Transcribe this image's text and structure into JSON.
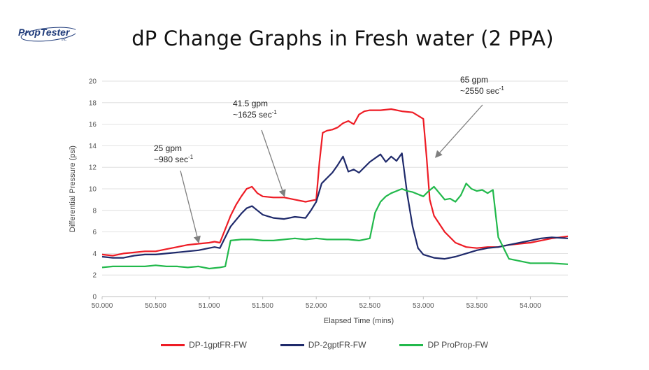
{
  "logo": {
    "name": "PropTester",
    "suffix": "Inc."
  },
  "slide_title": "dP Change Graphs in Fresh water (2 PPA)",
  "colors": {
    "red": "#ee1c25",
    "navy": "#1f2a6b",
    "green": "#22b94c",
    "grid": "#d9d9d9"
  },
  "chart_data": {
    "type": "line",
    "xlabel": "Elapsed Time (mins)",
    "ylabel": "Differential Pressure (psi)",
    "xlim": [
      50.0,
      54.35
    ],
    "ylim": [
      0,
      20
    ],
    "xticks": [
      "50.000",
      "50.500",
      "51.000",
      "51.500",
      "52.000",
      "52.500",
      "53.000",
      "53.500",
      "54.000"
    ],
    "yticks": [
      "0",
      "2",
      "4",
      "6",
      "8",
      "10",
      "12",
      "14",
      "16",
      "18",
      "20"
    ],
    "grid": "horizontal",
    "legend_position": "bottom",
    "series": [
      {
        "name": "DP-1gptFR-FW",
        "color": "#ee1c25",
        "x": [
          50.0,
          50.1,
          50.2,
          50.3,
          50.4,
          50.5,
          50.6,
          50.7,
          50.8,
          50.9,
          51.0,
          51.05,
          51.1,
          51.2,
          51.25,
          51.3,
          51.35,
          51.4,
          51.45,
          51.5,
          51.6,
          51.7,
          51.8,
          51.9,
          51.95,
          52.0,
          52.03,
          52.06,
          52.1,
          52.15,
          52.2,
          52.25,
          52.3,
          52.35,
          52.4,
          52.45,
          52.5,
          52.6,
          52.7,
          52.8,
          52.9,
          53.0,
          53.03,
          53.06,
          53.1,
          53.2,
          53.3,
          53.4,
          53.5,
          53.6,
          53.7,
          53.8,
          53.9,
          54.0,
          54.1,
          54.2,
          54.35
        ],
        "y": [
          3.9,
          3.8,
          4.0,
          4.1,
          4.2,
          4.2,
          4.4,
          4.6,
          4.8,
          4.9,
          5.0,
          5.1,
          5.0,
          7.5,
          8.5,
          9.3,
          10.0,
          10.2,
          9.6,
          9.3,
          9.2,
          9.2,
          9.0,
          8.8,
          8.9,
          9.0,
          12.5,
          15.2,
          15.4,
          15.5,
          15.7,
          16.1,
          16.3,
          16.0,
          16.9,
          17.2,
          17.3,
          17.3,
          17.4,
          17.2,
          17.1,
          16.5,
          13.0,
          9.0,
          7.5,
          6.0,
          5.0,
          4.6,
          4.5,
          4.6,
          4.6,
          4.8,
          4.9,
          5.0,
          5.2,
          5.4,
          5.6
        ]
      },
      {
        "name": "DP-2gptFR-FW",
        "color": "#1f2a6b",
        "x": [
          50.0,
          50.1,
          50.2,
          50.3,
          50.4,
          50.5,
          50.6,
          50.7,
          50.8,
          50.9,
          51.0,
          51.05,
          51.1,
          51.2,
          51.3,
          51.35,
          51.4,
          51.45,
          51.5,
          51.6,
          51.7,
          51.8,
          51.9,
          51.95,
          52.0,
          52.05,
          52.1,
          52.15,
          52.2,
          52.25,
          52.3,
          52.35,
          52.4,
          52.5,
          52.6,
          52.65,
          52.7,
          52.75,
          52.8,
          52.85,
          52.9,
          52.95,
          53.0,
          53.1,
          53.2,
          53.3,
          53.4,
          53.5,
          53.6,
          53.7,
          53.8,
          53.9,
          54.0,
          54.1,
          54.2,
          54.35
        ],
        "y": [
          3.7,
          3.6,
          3.6,
          3.8,
          3.9,
          3.9,
          4.0,
          4.1,
          4.2,
          4.3,
          4.5,
          4.6,
          4.5,
          6.5,
          7.7,
          8.2,
          8.4,
          8.0,
          7.6,
          7.3,
          7.2,
          7.4,
          7.3,
          8.0,
          8.8,
          10.5,
          11.0,
          11.5,
          12.2,
          13.0,
          11.6,
          11.8,
          11.5,
          12.5,
          13.2,
          12.5,
          13.0,
          12.6,
          13.3,
          9.5,
          6.5,
          4.5,
          3.9,
          3.6,
          3.5,
          3.7,
          4.0,
          4.3,
          4.5,
          4.6,
          4.8,
          5.0,
          5.2,
          5.4,
          5.5,
          5.4
        ]
      },
      {
        "name": "DP ProProp-FW",
        "color": "#22b94c",
        "x": [
          50.0,
          50.1,
          50.2,
          50.3,
          50.4,
          50.5,
          50.6,
          50.7,
          50.8,
          50.9,
          51.0,
          51.1,
          51.15,
          51.2,
          51.3,
          51.4,
          51.5,
          51.6,
          51.7,
          51.8,
          51.9,
          52.0,
          52.1,
          52.2,
          52.3,
          52.4,
          52.45,
          52.5,
          52.55,
          52.6,
          52.65,
          52.7,
          52.75,
          52.8,
          52.85,
          52.9,
          53.0,
          53.05,
          53.1,
          53.15,
          53.2,
          53.25,
          53.3,
          53.35,
          53.4,
          53.45,
          53.5,
          53.55,
          53.6,
          53.65,
          53.7,
          53.8,
          53.9,
          54.0,
          54.1,
          54.2,
          54.35
        ],
        "y": [
          2.7,
          2.8,
          2.8,
          2.8,
          2.8,
          2.9,
          2.8,
          2.8,
          2.7,
          2.8,
          2.6,
          2.7,
          2.8,
          5.2,
          5.3,
          5.3,
          5.2,
          5.2,
          5.3,
          5.4,
          5.3,
          5.4,
          5.3,
          5.3,
          5.3,
          5.2,
          5.3,
          5.4,
          7.8,
          8.8,
          9.3,
          9.6,
          9.8,
          10.0,
          9.8,
          9.7,
          9.3,
          9.8,
          10.2,
          9.6,
          9.0,
          9.1,
          8.8,
          9.4,
          10.5,
          10.0,
          9.8,
          9.9,
          9.6,
          9.9,
          5.5,
          3.5,
          3.3,
          3.1,
          3.1,
          3.1,
          3.0
        ]
      }
    ],
    "annotations": [
      {
        "lines": [
          "25 gpm",
          "~980 sec"
        ],
        "superscript": "-1",
        "x": 50.9,
        "y": 4.9
      },
      {
        "lines": [
          "41.5 gpm",
          "~1625 sec"
        ],
        "superscript": "-1",
        "x": 51.7,
        "y": 9.2
      },
      {
        "lines": [
          "65 gpm",
          "~2550 sec"
        ],
        "superscript": "-1",
        "x": 53.12,
        "y": 12.8
      }
    ]
  }
}
